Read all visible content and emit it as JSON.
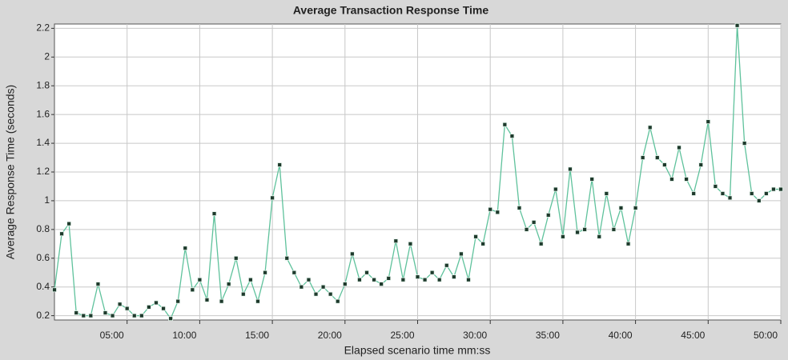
{
  "chart_data": {
    "type": "line",
    "title": "Average Transaction Response Time",
    "x_label": "Elapsed scenario time mm:ss",
    "y_label": "Average Response Time (seconds)",
    "x": [
      0,
      0.5,
      1,
      1.5,
      2,
      2.5,
      3,
      3.5,
      4,
      4.5,
      5,
      5.5,
      6,
      6.5,
      7,
      7.5,
      8,
      8.5,
      9,
      9.5,
      10,
      10.5,
      11,
      11.5,
      12,
      12.5,
      13,
      13.5,
      14,
      14.5,
      15,
      15.5,
      16,
      16.5,
      17,
      17.5,
      18,
      18.5,
      19,
      19.5,
      20,
      20.5,
      21,
      21.5,
      22,
      22.5,
      23,
      23.5,
      24,
      24.5,
      25,
      25.5,
      26,
      26.5,
      27,
      27.5,
      28,
      28.5,
      29,
      29.5,
      30,
      30.5,
      31,
      31.5,
      32,
      32.5,
      33,
      33.5,
      34,
      34.5,
      35,
      35.5,
      36,
      36.5,
      37,
      37.5,
      38,
      38.5,
      39,
      39.5,
      40,
      40.5,
      41,
      41.5,
      42,
      42.5,
      43,
      43.5,
      44,
      44.5,
      45,
      45.5,
      46,
      46.5,
      47,
      47.5,
      48,
      48.5,
      49,
      49.5,
      50
    ],
    "series": [
      {
        "name": "Average Response Time",
        "color": "#5fc29c",
        "values": [
          0.38,
          0.77,
          0.84,
          0.22,
          0.2,
          0.2,
          0.42,
          0.22,
          0.2,
          0.28,
          0.25,
          0.2,
          0.2,
          0.26,
          0.29,
          0.25,
          0.18,
          0.3,
          0.67,
          0.38,
          0.45,
          0.31,
          0.91,
          0.3,
          0.42,
          0.6,
          0.35,
          0.45,
          0.3,
          0.5,
          1.02,
          1.25,
          0.6,
          0.5,
          0.4,
          0.45,
          0.35,
          0.4,
          0.35,
          0.3,
          0.42,
          0.63,
          0.45,
          0.5,
          0.45,
          0.42,
          0.46,
          0.72,
          0.45,
          0.7,
          0.47,
          0.45,
          0.5,
          0.45,
          0.55,
          0.47,
          0.63,
          0.45,
          0.75,
          0.7,
          0.94,
          0.92,
          1.53,
          1.45,
          0.95,
          0.8,
          0.85,
          0.7,
          0.9,
          1.08,
          0.75,
          1.22,
          0.78,
          0.8,
          1.15,
          0.75,
          1.05,
          0.8,
          0.95,
          0.7,
          0.95,
          1.3,
          1.51,
          1.3,
          1.25,
          1.15,
          1.37,
          1.15,
          1.05,
          1.25,
          1.55,
          1.1,
          1.05,
          1.02,
          2.22,
          1.4,
          1.05,
          1.0,
          1.05,
          1.08,
          1.08
        ]
      }
    ],
    "xlim": [
      0,
      50
    ],
    "xticks": [
      {
        "value": 5,
        "label": "05:00"
      },
      {
        "value": 10,
        "label": "10:00"
      },
      {
        "value": 15,
        "label": "15:00"
      },
      {
        "value": 20,
        "label": "20:00"
      },
      {
        "value": 25,
        "label": "25:00"
      },
      {
        "value": 30,
        "label": "30:00"
      },
      {
        "value": 35,
        "label": "35:00"
      },
      {
        "value": 40,
        "label": "40:00"
      },
      {
        "value": 45,
        "label": "45:00"
      },
      {
        "value": 50,
        "label": "50:00"
      }
    ],
    "ylim": [
      0.17,
      2.23
    ],
    "yticks": [
      0.2,
      0.4,
      0.6,
      0.8,
      1,
      1.2,
      1.4,
      1.6,
      1.8,
      2,
      2.2
    ],
    "grid": true,
    "marker_color": "#1e3a2c"
  }
}
